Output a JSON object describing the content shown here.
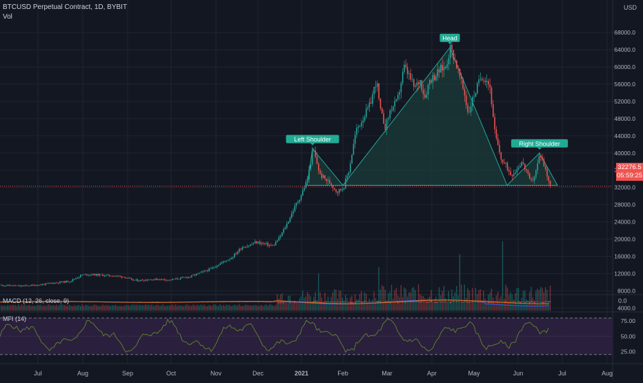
{
  "header": {
    "symbol_line": "BTCUSD Perpetual Contract, 1D, BYBIT",
    "vol_label": "Vol",
    "currency": "USD"
  },
  "price_badge": {
    "price": "32276.5",
    "countdown": "05:59:25"
  },
  "indicators": {
    "macd_label": "MACD (12, 26, close, 9)",
    "macd_zero": "0.0",
    "mfi_label": "MFI (14)"
  },
  "colors": {
    "background": "#131722",
    "up": "#26a69a",
    "down": "#ef5350",
    "pattern_fill": "#1b3b38",
    "pattern_line": "#26a69a",
    "label_bg": "#22ab94",
    "mfi_band": "#2a1f3d",
    "mfi_line": "#5d7f2e"
  },
  "chart_data": {
    "type": "candlestick",
    "y_ticks": [
      4000,
      8000,
      12000,
      16000,
      20000,
      24000,
      28000,
      32000,
      36000,
      40000,
      44000,
      48000,
      52000,
      56000,
      60000,
      64000,
      68000
    ],
    "y_tick_labels": [
      "4000.0",
      "8000.0",
      "12000.0",
      "16000.0",
      "20000.0",
      "24000.0",
      "28000.0",
      "32000.0",
      "36000.0",
      "40000.0",
      "44000.0",
      "48000.0",
      "52000.0",
      "56000.0",
      "60000.0",
      "64000.0",
      "68000.0"
    ],
    "x_labels": [
      "Jul",
      "Aug",
      "Sep",
      "Oct",
      "Nov",
      "Dec",
      "2021",
      "Feb",
      "Mar",
      "Apr",
      "May",
      "Jun",
      "Jul",
      "Aug"
    ],
    "price_path": [
      [
        0,
        9300
      ],
      [
        15,
        9200
      ],
      [
        30,
        9100
      ],
      [
        40,
        9200
      ],
      [
        58,
        9400
      ],
      [
        75,
        9800
      ],
      [
        88,
        10000
      ],
      [
        100,
        10200
      ],
      [
        110,
        11000
      ],
      [
        118,
        11700
      ],
      [
        130,
        11800
      ],
      [
        150,
        11600
      ],
      [
        165,
        11500
      ],
      [
        180,
        11200
      ],
      [
        190,
        10500
      ],
      [
        200,
        10400
      ],
      [
        215,
        10600
      ],
      [
        230,
        10700
      ],
      [
        245,
        10500
      ],
      [
        260,
        10900
      ],
      [
        275,
        11300
      ],
      [
        290,
        12200
      ],
      [
        305,
        13100
      ],
      [
        320,
        14500
      ],
      [
        335,
        15700
      ],
      [
        350,
        18200
      ],
      [
        360,
        18500
      ],
      [
        370,
        19300
      ],
      [
        380,
        19000
      ],
      [
        395,
        18400
      ],
      [
        405,
        20500
      ],
      [
        415,
        23500
      ],
      [
        425,
        27000
      ],
      [
        435,
        30000
      ],
      [
        445,
        34000
      ],
      [
        453,
        41000
      ],
      [
        458,
        38000
      ],
      [
        463,
        35000
      ],
      [
        470,
        34000
      ],
      [
        478,
        33000
      ],
      [
        488,
        31000
      ],
      [
        497,
        32000
      ],
      [
        505,
        36000
      ],
      [
        515,
        45000
      ],
      [
        525,
        48000
      ],
      [
        535,
        51000
      ],
      [
        545,
        57000
      ],
      [
        550,
        50000
      ],
      [
        558,
        46000
      ],
      [
        565,
        50000
      ],
      [
        575,
        52000
      ],
      [
        585,
        60000
      ],
      [
        592,
        58000
      ],
      [
        600,
        55000
      ],
      [
        608,
        57000
      ],
      [
        615,
        53000
      ],
      [
        622,
        57000
      ],
      [
        630,
        58000
      ],
      [
        638,
        59500
      ],
      [
        645,
        60000
      ],
      [
        652,
        64500
      ],
      [
        658,
        62000
      ],
      [
        665,
        58000
      ],
      [
        672,
        54000
      ],
      [
        678,
        49000
      ],
      [
        683,
        52000
      ],
      [
        690,
        55000
      ],
      [
        697,
        58000
      ],
      [
        705,
        57000
      ],
      [
        710,
        55000
      ],
      [
        715,
        46000
      ],
      [
        720,
        42000
      ],
      [
        727,
        38000
      ],
      [
        733,
        37000
      ],
      [
        740,
        35000
      ],
      [
        747,
        36000
      ],
      [
        755,
        38000
      ],
      [
        762,
        36000
      ],
      [
        768,
        33000
      ],
      [
        775,
        35000
      ],
      [
        782,
        40000
      ],
      [
        788,
        37000
      ],
      [
        794,
        34000
      ],
      [
        798,
        32277
      ]
    ],
    "volume_spikes": [
      [
        460,
        12000
      ],
      [
        548,
        13500
      ],
      [
        665,
        16500
      ],
      [
        728,
        19500
      ]
    ],
    "macd": {
      "zero": 0
    },
    "mfi": {
      "levels": [
        25,
        50,
        75
      ],
      "band": [
        20,
        80
      ]
    },
    "pattern": {
      "name": "Head and Shoulders",
      "neckline": 32500,
      "points": [
        [
          445,
          32500
        ],
        [
          453,
          41000
        ],
        [
          497,
          32500
        ],
        [
          652,
          64500
        ],
        [
          735,
          32500
        ],
        [
          782,
          40000
        ],
        [
          808,
          32500
        ]
      ]
    },
    "annotations": [
      {
        "text": "Left Shoulder",
        "at": [
          453,
          41000
        ]
      },
      {
        "text": "Head",
        "at": [
          652,
          64500
        ]
      },
      {
        "text": "Right Shoulder",
        "at": [
          782,
          40000
        ]
      }
    ],
    "last_price": 32276.5
  }
}
